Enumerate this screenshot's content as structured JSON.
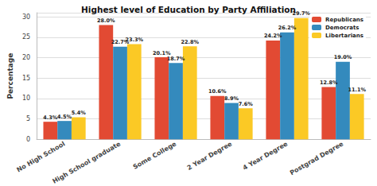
{
  "chart_data": {
    "type": "bar",
    "title": "Highest level of Education by Party Affiliation",
    "y_label": "Percentage",
    "categories": [
      "No High School",
      "High School graduate",
      "Some College",
      "2 Year Degree",
      "4 Year Degree",
      "Postgrad Degree"
    ],
    "series": [
      {
        "name": "Republicans",
        "color": "#E24A33",
        "values": [
          4.3,
          28.0,
          20.1,
          10.6,
          24.2,
          12.8
        ],
        "value_labels": [
          "4.3%",
          "28.0%",
          "20.1%",
          "10.6%",
          "24.2%",
          "12.8%"
        ]
      },
      {
        "name": "Democrats",
        "color": "#348ABD",
        "values": [
          4.5,
          22.7,
          18.7,
          8.9,
          26.2,
          19.0
        ],
        "value_labels": [
          "4.5%",
          "22.7%",
          "18.7%",
          "8.9%",
          "26.2%",
          "19.0%"
        ]
      },
      {
        "name": "Libertarians",
        "color": "#FBC925",
        "values": [
          5.4,
          23.3,
          22.8,
          7.6,
          29.7,
          11.1
        ],
        "value_labels": [
          "5.4%",
          "23.3%",
          "22.8%",
          "7.6%",
          "29.7%",
          "11.1%"
        ]
      }
    ],
    "ylim": [
      0,
      31
    ],
    "yticks": [
      0,
      5,
      10,
      15,
      20,
      25,
      30
    ],
    "grid": true,
    "legend": "upper right",
    "data_labels": true
  }
}
